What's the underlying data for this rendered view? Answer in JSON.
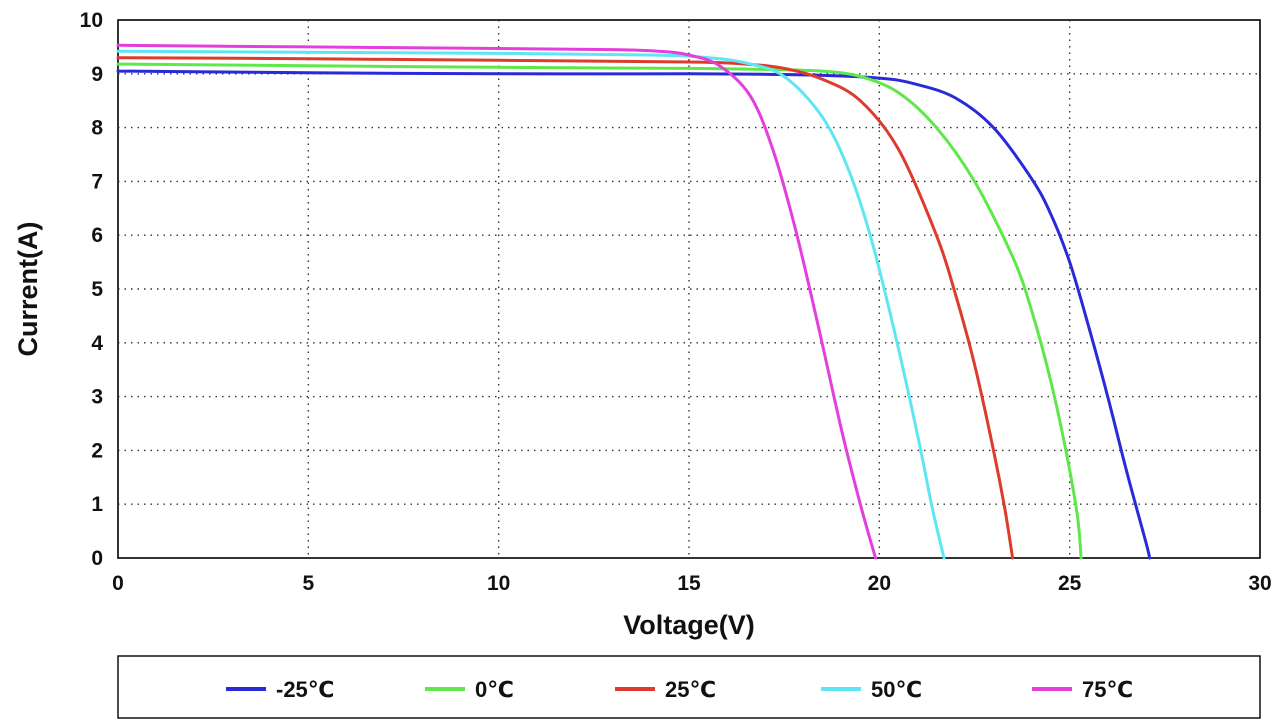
{
  "chart_data": {
    "type": "line",
    "xlabel": "Voltage(V)",
    "ylabel": "Current(A)",
    "xlim": [
      0,
      30
    ],
    "ylim": [
      0,
      10
    ],
    "x_ticks": [
      "0",
      "5",
      "10",
      "15",
      "20",
      "25",
      "30"
    ],
    "y_ticks": [
      "0",
      "1",
      "2",
      "3",
      "4",
      "5",
      "6",
      "7",
      "8",
      "9",
      "10"
    ],
    "grid": true,
    "grid_style": "dotted",
    "legend_position": "bottom",
    "series": [
      {
        "name": "-25℃",
        "color": "#2a2ad8",
        "x": [
          0,
          5,
          10,
          15,
          18,
          20,
          21,
          22,
          23,
          24,
          24.5,
          25,
          25.5,
          26,
          26.5,
          27,
          27.1
        ],
        "y": [
          9.05,
          9.02,
          9.0,
          9.0,
          8.98,
          8.92,
          8.8,
          8.55,
          8.0,
          7.05,
          6.4,
          5.5,
          4.3,
          3.0,
          1.6,
          0.3,
          0
        ]
      },
      {
        "name": "0℃",
        "color": "#5ee84a",
        "x": [
          0,
          5,
          10,
          15,
          17,
          18.5,
          19.5,
          20.5,
          21.5,
          22.5,
          23.5,
          24,
          24.5,
          24.9,
          25.2,
          25.3
        ],
        "y": [
          9.18,
          9.15,
          9.12,
          9.1,
          9.08,
          9.05,
          8.95,
          8.65,
          8.0,
          7.0,
          5.6,
          4.6,
          3.3,
          2.0,
          0.8,
          0
        ]
      },
      {
        "name": "25℃",
        "color": "#dd3b2c",
        "x": [
          0,
          5,
          10,
          15,
          16.5,
          17.5,
          18.5,
          19.5,
          20.5,
          21.5,
          22,
          22.5,
          23,
          23.3,
          23.5
        ],
        "y": [
          9.3,
          9.28,
          9.25,
          9.22,
          9.18,
          9.1,
          8.9,
          8.5,
          7.6,
          6.0,
          4.9,
          3.6,
          2.0,
          0.9,
          0
        ]
      },
      {
        "name": "50℃",
        "color": "#5ee6f2",
        "x": [
          0,
          5,
          10,
          14,
          15.5,
          16.5,
          17.5,
          18.5,
          19.2,
          19.8,
          20.4,
          21,
          21.4,
          21.7
        ],
        "y": [
          9.42,
          9.4,
          9.38,
          9.35,
          9.3,
          9.2,
          8.95,
          8.2,
          7.2,
          5.9,
          4.2,
          2.3,
          0.9,
          0
        ]
      },
      {
        "name": "75℃",
        "color": "#e43fdd",
        "x": [
          0,
          5,
          10,
          13,
          14.2,
          15,
          15.8,
          16.6,
          17.2,
          17.8,
          18.4,
          19,
          19.5,
          19.9
        ],
        "y": [
          9.53,
          9.5,
          9.47,
          9.45,
          9.42,
          9.35,
          9.15,
          8.6,
          7.6,
          6.1,
          4.3,
          2.4,
          1.0,
          0
        ]
      }
    ]
  }
}
